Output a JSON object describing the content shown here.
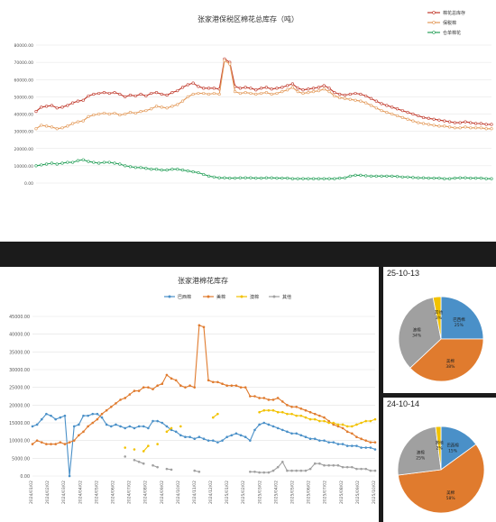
{
  "chart_data": [
    {
      "id": "top-chart",
      "type": "line",
      "title": "张家港保税区棉花总库存（吨）",
      "ylim": [
        0,
        80000
      ],
      "yticks": [
        0,
        10000,
        20000,
        30000,
        40000,
        50000,
        60000,
        70000,
        80000
      ],
      "grid": true,
      "legend_position": "top-right",
      "series": [
        {
          "name": "棉花总库存",
          "color": "#c0392b",
          "values": [
            41500,
            44000,
            44500,
            45000,
            43500,
            44000,
            45000,
            46500,
            47500,
            48000,
            50500,
            51500,
            52000,
            52500,
            52000,
            52500,
            51500,
            50000,
            51000,
            50500,
            51500,
            50500,
            52000,
            52500,
            51500,
            51000,
            52500,
            53500,
            55500,
            57000,
            58000,
            56000,
            55000,
            55000,
            55000,
            54500,
            72000,
            70000,
            56000,
            55000,
            55500,
            55000,
            54000,
            55000,
            55500,
            54500,
            55000,
            55500,
            56500,
            57500,
            55000,
            54000,
            54500,
            55000,
            55500,
            56500,
            55000,
            52500,
            51500,
            51000,
            51500,
            52000,
            51500,
            50500,
            49000,
            47500,
            46000,
            45000,
            44000,
            43000,
            42000,
            41000,
            40000,
            39000,
            38000,
            37500,
            37000,
            36500,
            36000,
            35500,
            35000,
            35000,
            35500,
            35000,
            34500,
            34500,
            34000,
            34000
          ]
        },
        {
          "name": "保税棉",
          "color": "#e39a5a",
          "values": [
            31500,
            33500,
            33000,
            32500,
            31500,
            32000,
            33000,
            34500,
            35500,
            36000,
            38500,
            39500,
            40000,
            40500,
            40000,
            40500,
            39500,
            40000,
            41000,
            40500,
            41500,
            42000,
            43000,
            44500,
            44000,
            43500,
            44500,
            45500,
            47500,
            50000,
            51500,
            52000,
            52000,
            51500,
            52000,
            51500,
            71000,
            69000,
            53000,
            52000,
            52500,
            52000,
            51500,
            52000,
            52500,
            51500,
            52000,
            53000,
            54000,
            55500,
            53000,
            52000,
            52500,
            53000,
            53500,
            54500,
            53000,
            50500,
            49500,
            49000,
            48500,
            48000,
            47500,
            46500,
            45000,
            43500,
            42000,
            41000,
            40000,
            39000,
            38000,
            37000,
            36000,
            35000,
            34500,
            34000,
            33500,
            33000,
            33000,
            32500,
            32000,
            32000,
            32500,
            32000,
            32000,
            32000,
            31500,
            31500
          ]
        },
        {
          "name": "仓单棉花",
          "color": "#27a05a",
          "values": [
            10000,
            10500,
            11000,
            11500,
            11000,
            11500,
            12000,
            12000,
            13000,
            13500,
            12500,
            12000,
            11500,
            12000,
            12000,
            11500,
            11000,
            10000,
            9500,
            9000,
            9000,
            8500,
            8000,
            8000,
            7500,
            7500,
            8000,
            8000,
            7500,
            7000,
            6500,
            6000,
            5000,
            4000,
            3500,
            3000,
            3000,
            2800,
            2800,
            3000,
            3000,
            3000,
            2800,
            2800,
            3000,
            3000,
            2800,
            2800,
            2800,
            2500,
            2500,
            2500,
            2500,
            2500,
            2500,
            2500,
            2500,
            2500,
            2800,
            3000,
            4000,
            4500,
            4500,
            4200,
            4000,
            4000,
            4000,
            4000,
            4000,
            3800,
            3500,
            3500,
            3200,
            3000,
            3000,
            2800,
            2800,
            2800,
            2500,
            2500,
            2800,
            3000,
            3000,
            2800,
            2800,
            2800,
            2500,
            2500
          ]
        }
      ]
    },
    {
      "id": "bottom-chart",
      "type": "line",
      "title": "张家港棉花库存",
      "ylim": [
        0,
        45000
      ],
      "yticks": [
        "0.00",
        "5000.00",
        "10000.00",
        "15000.00",
        "20000.00",
        "25000.00",
        "30000.00",
        "35000.00",
        "40000.00",
        "45000.00"
      ],
      "x_tick_labels": [
        "2024/01/02",
        "2024/02/02",
        "2024/03/02",
        "2024/04/02",
        "2024/05/02",
        "2024/06/02",
        "2024/07/02",
        "2024/08/02",
        "2024/09/02",
        "2024/10/02",
        "2024/11/02",
        "2024/12/02",
        "2025/01/02",
        "2025/02/02",
        "2025/03/02",
        "2025/04/02",
        "2025/05/02",
        "2025/06/02",
        "2025/07/02",
        "2025/08/02",
        "2025/09/02",
        "2025/10/02"
      ],
      "grid": true,
      "legend_position": "top",
      "series": [
        {
          "name": "巴西棉",
          "color": "#4a90c8",
          "values": [
            14000,
            14500,
            16000,
            17500,
            17000,
            16000,
            16500,
            17000,
            0,
            14000,
            14500,
            17000,
            17000,
            17500,
            17500,
            16500,
            14500,
            14000,
            14500,
            14000,
            13500,
            14000,
            13500,
            14000,
            14000,
            13500,
            15500,
            15500,
            15000,
            14000,
            13000,
            12500,
            11500,
            11000,
            11000,
            10500,
            11000,
            10500,
            10000,
            10000,
            9500,
            10000,
            11000,
            11500,
            12000,
            11500,
            11000,
            10000,
            13000,
            14500,
            15000,
            14500,
            14000,
            13500,
            13000,
            12500,
            12000,
            12000,
            11500,
            11000,
            10500,
            10500,
            10000,
            10000,
            9500,
            9500,
            9000,
            9000,
            8500,
            8500,
            8500,
            8000,
            8000,
            8000,
            7500
          ]
        },
        {
          "name": "美棉",
          "color": "#e07b2e",
          "values": [
            9000,
            10000,
            9500,
            9000,
            9000,
            9000,
            9500,
            9000,
            9500,
            10000,
            11500,
            12500,
            14000,
            15000,
            16000,
            17500,
            18500,
            19500,
            20500,
            21500,
            22000,
            23000,
            24000,
            24000,
            25000,
            25000,
            24500,
            25500,
            26000,
            28500,
            27500,
            27000,
            25500,
            25000,
            25500,
            25000,
            42500,
            42000,
            27000,
            26500,
            26500,
            26000,
            25500,
            25500,
            25500,
            25000,
            25000,
            22500,
            22500,
            22000,
            22000,
            21500,
            21500,
            22000,
            21000,
            20000,
            19500,
            19500,
            19000,
            18500,
            18000,
            17500,
            17000,
            16500,
            15500,
            14500,
            14000,
            13500,
            12500,
            12000,
            11000,
            10500,
            10000,
            9500,
            9500
          ]
        },
        {
          "name": "澳棉",
          "color": "#f2c200",
          "values": [
            null,
            null,
            null,
            null,
            null,
            null,
            null,
            null,
            null,
            null,
            null,
            null,
            null,
            null,
            null,
            null,
            null,
            null,
            null,
            null,
            8000,
            null,
            7500,
            null,
            7000,
            8500,
            null,
            9000,
            null,
            12500,
            13500,
            null,
            14000,
            null,
            null,
            null,
            null,
            null,
            null,
            16500,
            17500,
            null,
            null,
            null,
            null,
            null,
            null,
            null,
            null,
            18000,
            18500,
            18500,
            18500,
            18000,
            18000,
            17500,
            17500,
            17000,
            17000,
            16500,
            16000,
            16000,
            15500,
            15500,
            15000,
            15000,
            14500,
            14500,
            14000,
            14000,
            14500,
            15000,
            15500,
            15500,
            16000
          ]
        },
        {
          "name": "其他",
          "color": "#a0a0a0",
          "values": [
            null,
            null,
            null,
            null,
            null,
            null,
            null,
            null,
            null,
            null,
            null,
            null,
            null,
            null,
            null,
            null,
            null,
            null,
            null,
            null,
            5500,
            null,
            4500,
            4000,
            3500,
            null,
            3000,
            2500,
            null,
            2000,
            1800,
            null,
            null,
            null,
            null,
            1500,
            1200,
            null,
            null,
            null,
            null,
            null,
            null,
            null,
            null,
            null,
            null,
            1200,
            1200,
            1000,
            1000,
            1000,
            1500,
            2500,
            4000,
            1500,
            1500,
            1500,
            1500,
            1500,
            2000,
            3500,
            3500,
            3000,
            3000,
            3000,
            3000,
            2500,
            2500,
            2500,
            2000,
            2000,
            2000,
            1500,
            1500
          ]
        }
      ]
    },
    {
      "id": "pie-1",
      "type": "pie",
      "date_label": "25-10-13",
      "slices": [
        {
          "name": "巴西棉",
          "value": 25,
          "label": "25%",
          "color": "#4a90c8"
        },
        {
          "name": "美棉",
          "value": 38,
          "label": "38%",
          "color": "#e07b2e"
        },
        {
          "name": "澳棉",
          "value": 34,
          "label": "34%",
          "color": "#a0a0a0"
        },
        {
          "name": "其他",
          "value": 3,
          "label": "3%",
          "color": "#f2c200"
        }
      ]
    },
    {
      "id": "pie-2",
      "type": "pie",
      "date_label": "24-10-14",
      "slices": [
        {
          "name": "巴西棉",
          "value": 15,
          "label": "15%",
          "color": "#4a90c8"
        },
        {
          "name": "美棉",
          "value": 58,
          "label": "58%",
          "color": "#e07b2e"
        },
        {
          "name": "澳棉",
          "value": 25,
          "label": "25%",
          "color": "#a0a0a0"
        },
        {
          "name": "其他",
          "value": 2,
          "label": "2%",
          "color": "#f2c200"
        }
      ]
    }
  ]
}
